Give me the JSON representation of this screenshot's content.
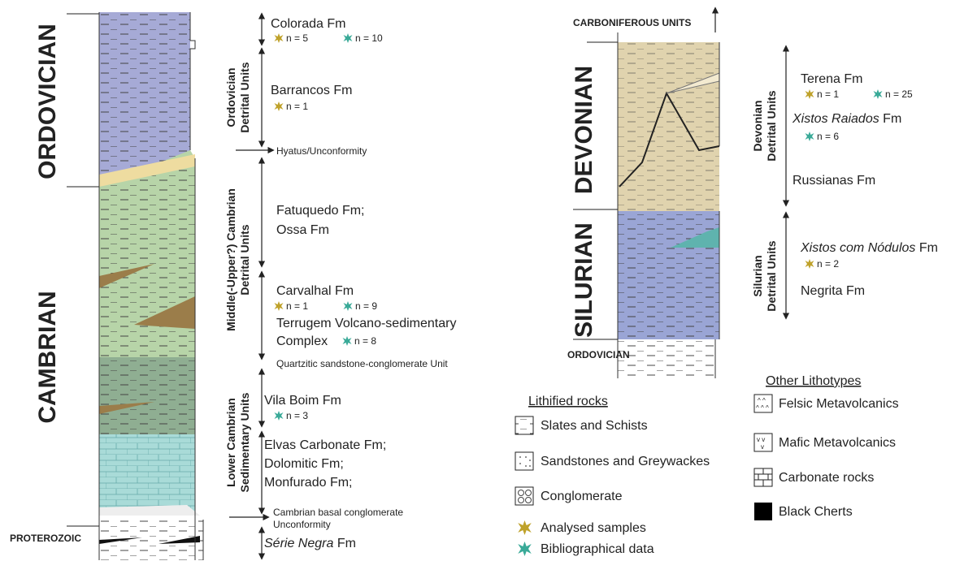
{
  "left_column": {
    "periods": [
      "ORDOVICIAN",
      "CAMBRIAN",
      "PROTEROZOIC"
    ],
    "unit_groups": [
      [
        "Ordovician",
        "Detrital Units"
      ],
      [
        "Middle(-Upper?) Cambrian",
        "Detrital Units"
      ],
      [
        "Lower Cambrian",
        "Sedimentary Units"
      ]
    ],
    "colorada": {
      "name": "Colorada Fm",
      "analysed": "n = 5",
      "bibliographical": "n = 10"
    },
    "barrancos": {
      "name": "Barrancos Fm",
      "analysed": "n = 1"
    },
    "hyatus": "Hyatus/Unconformity",
    "fatuquedo": [
      "Fatuquedo Fm;",
      "Ossa Fm"
    ],
    "carvalhal": {
      "name": "Carvalhal Fm",
      "analysed": "n = 1",
      "bibliographical": "n = 9"
    },
    "terrugem": {
      "lines": [
        "Terrugem Volcano-sedimentary",
        "Complex"
      ],
      "bibliographical": "n = 8"
    },
    "quartzitic": "Quartzitic sandstone-conglomerate Unit",
    "vila_boim": {
      "name": "Vila Boim Fm",
      "bibliographical": "n = 3"
    },
    "carbonates": [
      "Elvas Carbonate Fm;",
      "Dolomitic Fm;",
      "Monfurado Fm;"
    ],
    "basal": [
      "Cambrian basal conglomerate",
      "Unconformity"
    ],
    "serie_negra": {
      "italic": "Série Negra",
      "rest": "Fm"
    }
  },
  "right_column": {
    "top": "CARBONIFEROUS UNITS",
    "periods": [
      "DEVONIAN",
      "SILURIAN",
      "ORDOVICIAN"
    ],
    "unit_groups": [
      [
        "Devonian",
        "Detrital Units"
      ],
      [
        "Silurian",
        "Detrital Units"
      ]
    ],
    "terena": {
      "name": "Terena Fm",
      "analysed": "n = 1",
      "bibliographical": "n = 25"
    },
    "xistos_raiados": {
      "italic": "Xistos Raiados",
      "rest": "Fm",
      "bibliographical": "n = 6"
    },
    "russianas": "Russianas Fm",
    "xistos_nodulos": {
      "italic": "Xistos com Nódulos",
      "rest": "Fm",
      "analysed": "n = 2"
    },
    "negrita": "Negrita Fm"
  },
  "legend": {
    "lithified_title": "Lithified rocks",
    "lithified": [
      "Slates and Schists",
      "Sandstones and Greywackes",
      "Conglomerate"
    ],
    "markers": [
      "Analysed samples",
      "Bibliographical data"
    ],
    "other_title": "Other Lithotypes",
    "other": [
      "Felsic Metavolcanics",
      "Mafic Metavolcanics",
      "Carbonate rocks",
      "Black Cherts"
    ]
  }
}
